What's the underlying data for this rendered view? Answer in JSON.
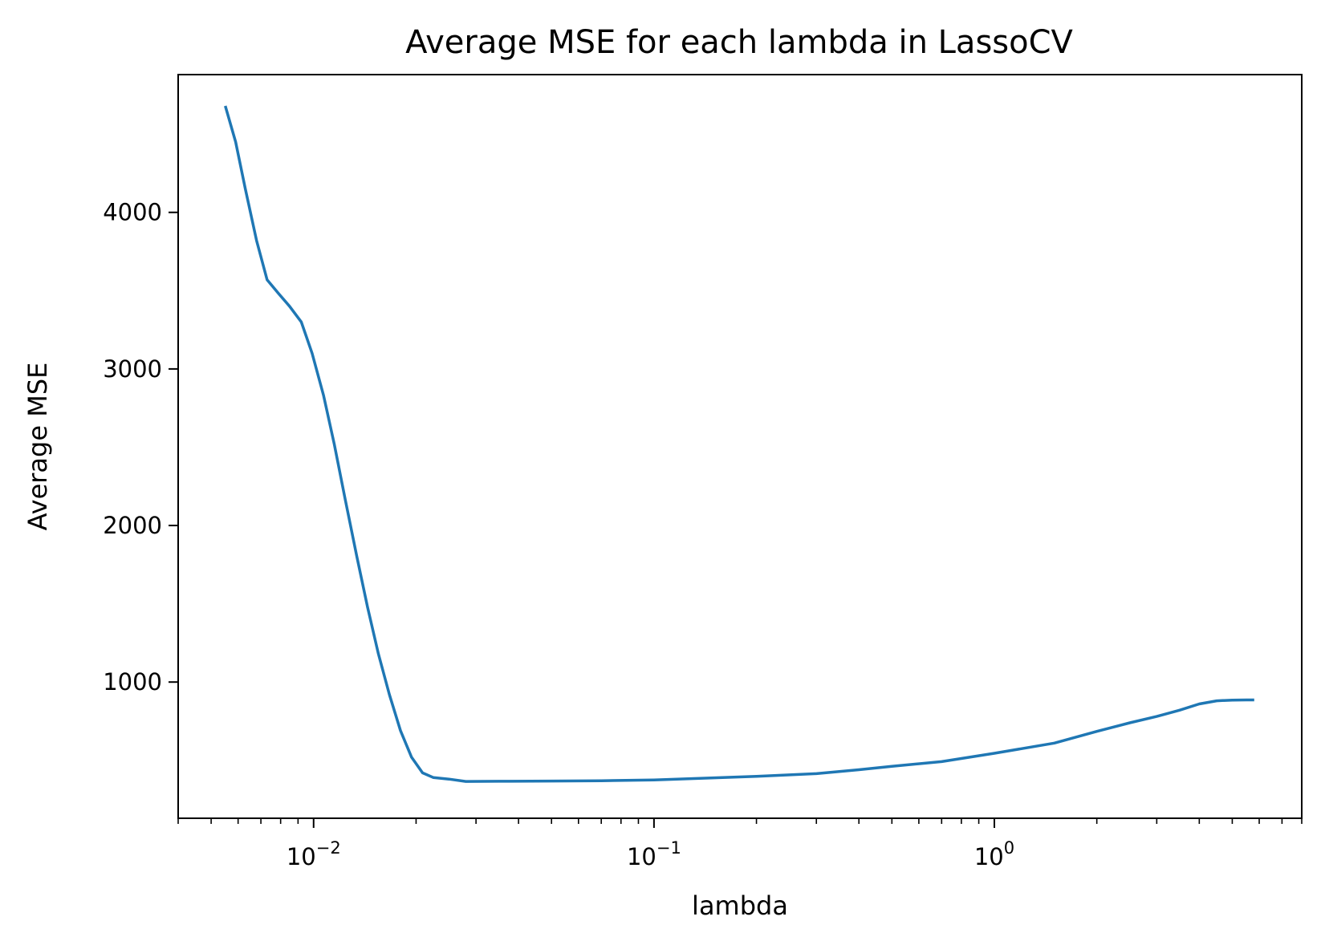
{
  "chart_data": {
    "type": "line",
    "title": "Average MSE for each lambda in LassoCV",
    "xlabel": "lambda",
    "ylabel": "Average MSE",
    "x_scale": "log",
    "xlim": [
      0.004,
      8.0
    ],
    "ylim": [
      130,
      4880
    ],
    "grid": false,
    "x_ticks": [
      {
        "value": 0.01,
        "base": "10",
        "exp": "−2"
      },
      {
        "value": 0.1,
        "base": "10",
        "exp": "−1"
      },
      {
        "value": 1,
        "base": "10",
        "exp": "0"
      }
    ],
    "y_ticks": [
      {
        "value": 1000,
        "label": "1000"
      },
      {
        "value": 2000,
        "label": "2000"
      },
      {
        "value": 3000,
        "label": "3000"
      },
      {
        "value": 4000,
        "label": "4000"
      }
    ],
    "series": [
      {
        "color": "#1f77b4",
        "points": [
          [
            0.0055,
            4680
          ],
          [
            0.0059,
            4450
          ],
          [
            0.0063,
            4150
          ],
          [
            0.0068,
            3820
          ],
          [
            0.0073,
            3570
          ],
          [
            0.0079,
            3480
          ],
          [
            0.0085,
            3400
          ],
          [
            0.0092,
            3300
          ],
          [
            0.0099,
            3100
          ],
          [
            0.0107,
            2830
          ],
          [
            0.0115,
            2520
          ],
          [
            0.0124,
            2160
          ],
          [
            0.0134,
            1800
          ],
          [
            0.0144,
            1480
          ],
          [
            0.0155,
            1180
          ],
          [
            0.0167,
            920
          ],
          [
            0.018,
            690
          ],
          [
            0.0194,
            520
          ],
          [
            0.0209,
            420
          ],
          [
            0.0225,
            390
          ],
          [
            0.025,
            380
          ],
          [
            0.028,
            365
          ],
          [
            0.035,
            366
          ],
          [
            0.05,
            368
          ],
          [
            0.07,
            370
          ],
          [
            0.1,
            375
          ],
          [
            0.15,
            388
          ],
          [
            0.2,
            398
          ],
          [
            0.3,
            415
          ],
          [
            0.4,
            440
          ],
          [
            0.5,
            462
          ],
          [
            0.7,
            492
          ],
          [
            1.0,
            545
          ],
          [
            1.5,
            610
          ],
          [
            2.0,
            685
          ],
          [
            2.5,
            740
          ],
          [
            3.0,
            780
          ],
          [
            3.5,
            820
          ],
          [
            4.0,
            860
          ],
          [
            4.5,
            880
          ],
          [
            5.0,
            885
          ],
          [
            5.5,
            886
          ],
          [
            5.8,
            886
          ]
        ]
      }
    ]
  }
}
